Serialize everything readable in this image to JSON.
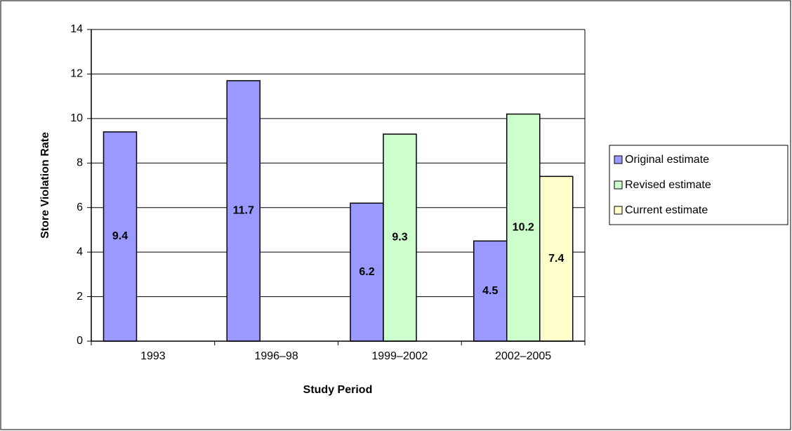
{
  "chart_data": {
    "type": "bar",
    "x_label": "Study Period",
    "y_label": "Store Violation Rate",
    "categories": [
      "1993",
      "1996–98",
      "1999–2002",
      "2002–2005"
    ],
    "series": [
      {
        "name": "Original estimate",
        "color": "#9999ff",
        "values": [
          9.4,
          11.7,
          6.2,
          4.5
        ]
      },
      {
        "name": "Revised estimate",
        "color": "#ccffcc",
        "values": [
          null,
          null,
          9.3,
          10.2
        ]
      },
      {
        "name": "Current estimate",
        "color": "#ffffcc",
        "values": [
          null,
          null,
          null,
          7.4
        ]
      }
    ],
    "ylim": [
      0,
      14
    ],
    "yticks": [
      0,
      2,
      4,
      6,
      8,
      10,
      12,
      14
    ],
    "grid": true,
    "legend": "right"
  }
}
